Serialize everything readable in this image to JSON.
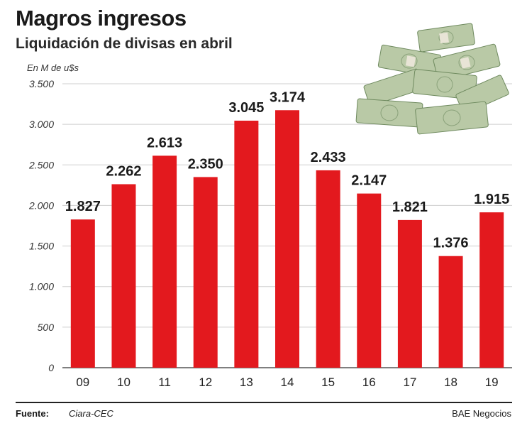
{
  "header": {
    "title": "Magros ingresos",
    "subtitle": "Liquidación de divisas en abril",
    "unit": "En M de u$s"
  },
  "footer": {
    "source_label": "Fuente:",
    "source_value": "Ciara-CEC",
    "credit": "BAE Negocios"
  },
  "illustration": {
    "name": "money-stacks-image"
  },
  "colors": {
    "bar": "#e3191e",
    "grid": "#cfcfcf",
    "axis": "#333333"
  },
  "chart_data": {
    "type": "bar",
    "title": "Magros ingresos",
    "subtitle": "Liquidación de divisas en abril",
    "ylabel": "En M de u$s",
    "xlabel": "",
    "categories": [
      "09",
      "10",
      "11",
      "12",
      "13",
      "14",
      "15",
      "16",
      "17",
      "18",
      "19"
    ],
    "values": [
      1827,
      2262,
      2613,
      2350,
      3045,
      3174,
      2433,
      2147,
      1821,
      1376,
      1915
    ],
    "value_labels": [
      "1.827",
      "2.262",
      "2.613",
      "2.350",
      "3.045",
      "3.174",
      "2.433",
      "2.147",
      "1.821",
      "1.376",
      "1.915"
    ],
    "ylim": [
      0,
      3500
    ],
    "yticks": [
      0,
      500,
      1000,
      1500,
      2000,
      2500,
      3000,
      3500
    ],
    "ytick_labels": [
      "0",
      "500",
      "1.000",
      "1.500",
      "2.000",
      "2.500",
      "3.000",
      "3.500"
    ],
    "grid": true,
    "legend": "none"
  }
}
